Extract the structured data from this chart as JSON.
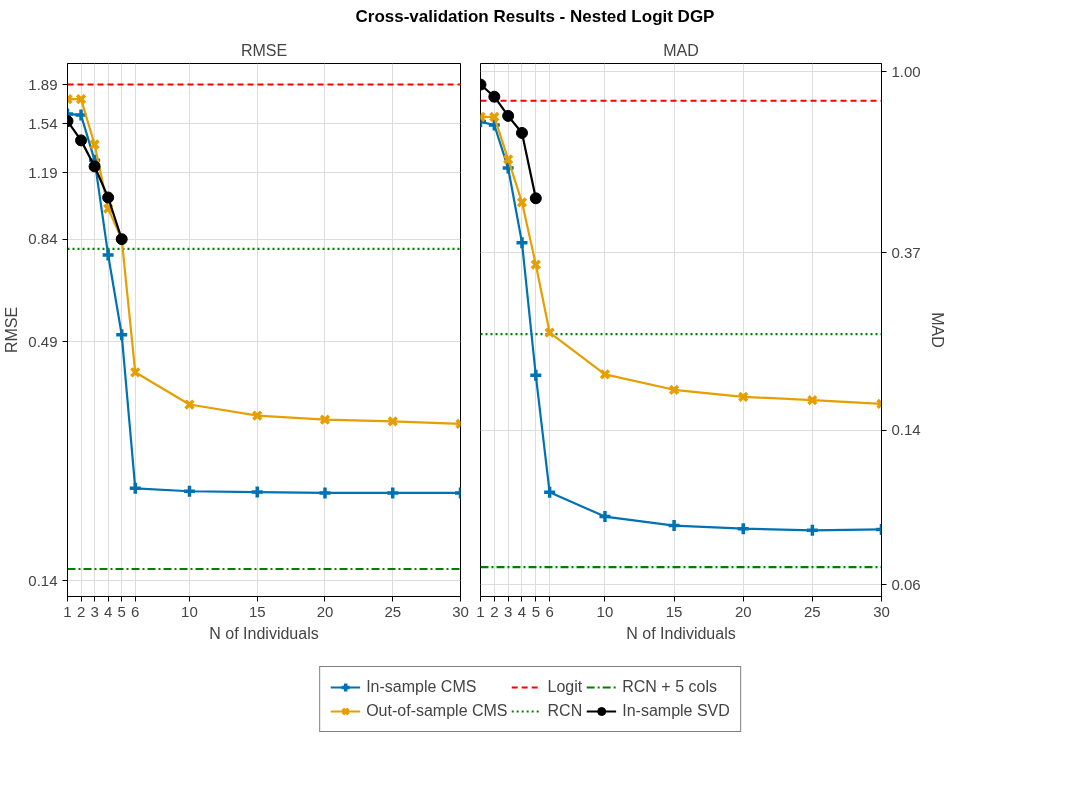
{
  "chart_data": [
    {
      "type": "line",
      "title": "RMSE",
      "annotations": [
        "Cross-validation Results - Nested Logit DGP"
      ],
      "xlabel": "N of Individuals",
      "ylabel": "RMSE",
      "log": "y",
      "grid": true,
      "legend": "bottom",
      "line_style": "solid",
      "x": [
        1,
        2,
        3,
        4,
        5,
        6,
        10,
        15,
        20,
        25,
        30
      ],
      "xlim": [
        1,
        30
      ],
      "xticks": [
        1,
        2,
        3,
        4,
        5,
        6,
        10,
        15,
        20,
        25,
        30
      ],
      "ylim": [
        0.129,
        2.11
      ],
      "yticks": [
        0.14,
        0.49,
        0.84,
        1.19,
        1.54,
        1.89
      ],
      "series": [
        {
          "name": "In-sample CMS",
          "color": "#0072b2",
          "marker": "cross",
          "values": [
            1.62,
            1.61,
            1.27,
            0.773,
            0.509,
            0.2275,
            0.224,
            0.223,
            0.222,
            0.222,
            0.222
          ]
        },
        {
          "name": "Out-of-sample CMS",
          "color": "#e69f00",
          "marker": "x",
          "values": [
            1.75,
            1.75,
            1.38,
            0.986,
            0.84,
            0.418,
            0.353,
            0.333,
            0.326,
            0.323,
            0.319
          ]
        },
        {
          "name": "In-sample SVD",
          "color": "#000000",
          "marker": "circle",
          "x": [
            1,
            2,
            3,
            4,
            5
          ],
          "values": [
            1.56,
            1.41,
            1.23,
            1.045,
            0.84
          ]
        }
      ],
      "ref_lines": [
        {
          "axis": "y",
          "value": 1.89,
          "label": "Logit",
          "color": "#ff0000",
          "line_style": "dashed"
        },
        {
          "axis": "y",
          "value": 0.798,
          "label": "RCN",
          "color": "#008000",
          "line_style": "dotted"
        },
        {
          "axis": "y",
          "value": 0.149,
          "label": "RCN + 5 cols",
          "color": "#008000",
          "line_style": "dashdot"
        }
      ]
    },
    {
      "type": "line",
      "title": "MAD",
      "xlabel": "N of Individuals",
      "y2label": "MAD",
      "log": "y2",
      "grid": true,
      "line_style": "solid",
      "x": [
        1,
        2,
        3,
        4,
        5,
        6,
        10,
        15,
        20,
        25,
        30
      ],
      "xlim": [
        1,
        30
      ],
      "xticks": [
        1,
        2,
        3,
        4,
        5,
        6,
        10,
        15,
        20,
        25,
        30
      ],
      "y2lim": [
        0.0562,
        1.045
      ],
      "y2ticks": [
        {
          "value": 1.0,
          "label": "1.00"
        },
        0.37,
        0.14,
        0.06
      ],
      "series": [
        {
          "name": "In-sample CMS",
          "color": "#0072b2",
          "marker": "cross",
          "axis": "y2",
          "values": [
            0.759,
            0.746,
            0.589,
            0.391,
            0.189,
            0.0995,
            0.0871,
            0.0829,
            0.0815,
            0.0808,
            0.0812
          ]
        },
        {
          "name": "Out-of-sample CMS",
          "color": "#e69f00",
          "marker": "x",
          "axis": "y2",
          "values": [
            0.78,
            0.78,
            0.618,
            0.488,
            0.347,
            0.239,
            0.19,
            0.1746,
            0.168,
            0.165,
            0.1617
          ]
        },
        {
          "name": "In-sample SVD",
          "color": "#000000",
          "marker": "circle",
          "axis": "y2",
          "x": [
            1,
            2,
            3,
            4,
            5
          ],
          "values": [
            0.931,
            0.871,
            0.784,
            0.714,
            0.499
          ]
        }
      ],
      "ref_lines": [
        {
          "axis": "y2",
          "value": 0.852,
          "color": "#ff0000",
          "line_style": "dashed"
        },
        {
          "axis": "y2",
          "value": 0.237,
          "color": "#008000",
          "line_style": "dotted"
        },
        {
          "axis": "y2",
          "value": 0.066,
          "color": "#008000",
          "line_style": "dashdot"
        }
      ]
    }
  ]
}
